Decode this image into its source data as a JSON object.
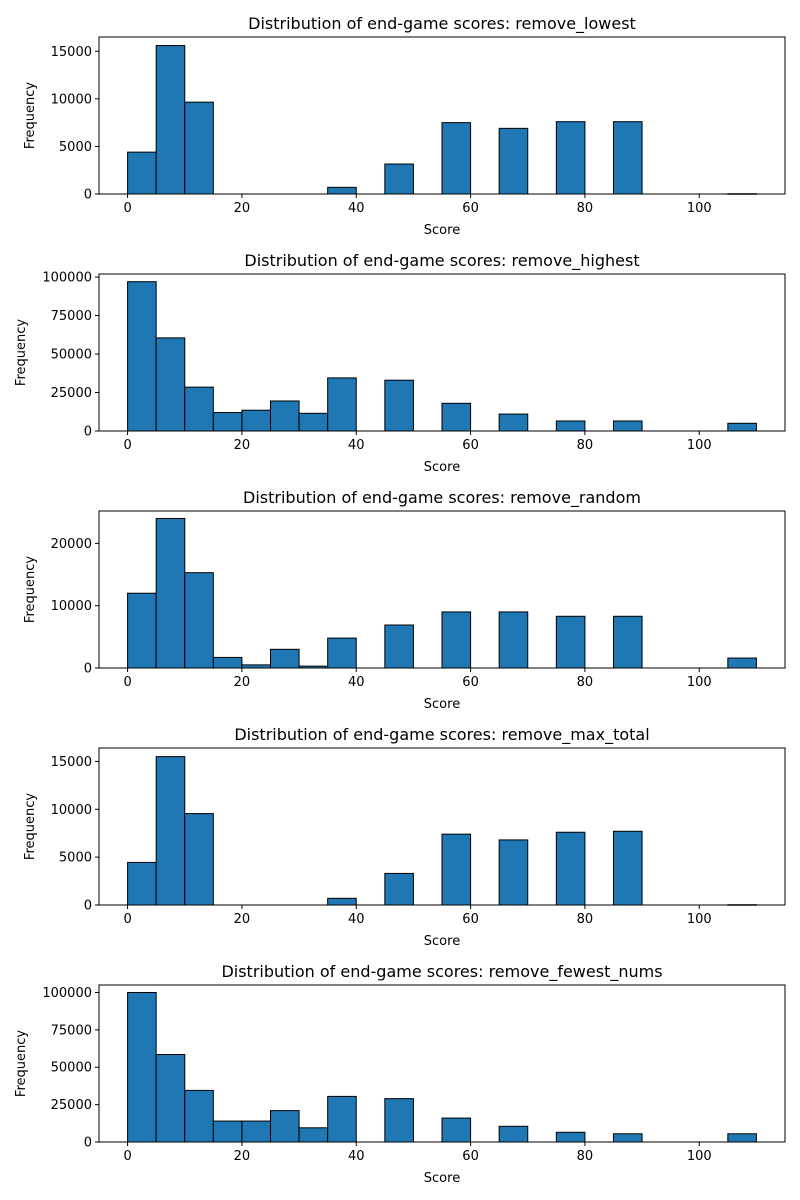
{
  "chart_data": [
    {
      "type": "bar",
      "title": "Distribution of end-game scores: remove_lowest",
      "xlabel": "Score",
      "ylabel": "Frequency",
      "xlim": [
        -5,
        115
      ],
      "ylim": [
        0,
        16500
      ],
      "xticks": [
        0,
        20,
        40,
        60,
        80,
        100
      ],
      "yticks": [
        0,
        5000,
        10000,
        15000
      ],
      "bin_edges": [
        0,
        5,
        10,
        15,
        20,
        25,
        30,
        35,
        40,
        45,
        50,
        55,
        60,
        65,
        70,
        75,
        80,
        85,
        90,
        95,
        100,
        105,
        110
      ],
      "values": [
        4400,
        15600,
        9650,
        0,
        0,
        0,
        0,
        700,
        0,
        3150,
        0,
        7500,
        0,
        6900,
        0,
        7600,
        0,
        7600,
        0,
        0,
        0,
        30
      ],
      "bar_color": "#1f77b4",
      "edge_color": "#000000"
    },
    {
      "type": "bar",
      "title": "Distribution of end-game scores: remove_highest",
      "xlabel": "Score",
      "ylabel": "Frequency",
      "xlim": [
        -5,
        115
      ],
      "ylim": [
        0,
        102000
      ],
      "xticks": [
        0,
        20,
        40,
        60,
        80,
        100
      ],
      "yticks": [
        0,
        25000,
        50000,
        75000,
        100000
      ],
      "bin_edges": [
        0,
        5,
        10,
        15,
        20,
        25,
        30,
        35,
        40,
        45,
        50,
        55,
        60,
        65,
        70,
        75,
        80,
        85,
        90,
        95,
        100,
        105,
        110
      ],
      "values": [
        97000,
        60500,
        28500,
        12000,
        13500,
        19500,
        11500,
        34500,
        0,
        33000,
        0,
        18000,
        0,
        11000,
        0,
        6500,
        0,
        6500,
        0,
        0,
        0,
        5000
      ],
      "bar_color": "#1f77b4",
      "edge_color": "#000000"
    },
    {
      "type": "bar",
      "title": "Distribution of end-game scores: remove_random",
      "xlabel": "Score",
      "ylabel": "Frequency",
      "xlim": [
        -5,
        115
      ],
      "ylim": [
        0,
        25200
      ],
      "xticks": [
        0,
        20,
        40,
        60,
        80,
        100
      ],
      "yticks": [
        0,
        10000,
        20000
      ],
      "bin_edges": [
        0,
        5,
        10,
        15,
        20,
        25,
        30,
        35,
        40,
        45,
        50,
        55,
        60,
        65,
        70,
        75,
        80,
        85,
        90,
        95,
        100,
        105,
        110
      ],
      "values": [
        12000,
        24000,
        15300,
        1700,
        500,
        3000,
        300,
        4800,
        0,
        6900,
        0,
        9000,
        0,
        9000,
        0,
        8300,
        0,
        8300,
        0,
        0,
        0,
        1600
      ],
      "bar_color": "#1f77b4",
      "edge_color": "#000000"
    },
    {
      "type": "bar",
      "title": "Distribution of end-game scores: remove_max_total",
      "xlabel": "Score",
      "ylabel": "Frequency",
      "xlim": [
        -5,
        115
      ],
      "ylim": [
        0,
        16400
      ],
      "xticks": [
        0,
        20,
        40,
        60,
        80,
        100
      ],
      "yticks": [
        0,
        5000,
        10000,
        15000
      ],
      "bin_edges": [
        0,
        5,
        10,
        15,
        20,
        25,
        30,
        35,
        40,
        45,
        50,
        55,
        60,
        65,
        70,
        75,
        80,
        85,
        90,
        95,
        100,
        105,
        110
      ],
      "values": [
        4450,
        15500,
        9550,
        0,
        0,
        0,
        0,
        700,
        0,
        3300,
        0,
        7400,
        0,
        6800,
        0,
        7600,
        0,
        7700,
        0,
        0,
        0,
        30
      ],
      "bar_color": "#1f77b4",
      "edge_color": "#000000"
    },
    {
      "type": "bar",
      "title": "Distribution of end-game scores: remove_fewest_nums",
      "xlabel": "Score",
      "ylabel": "Frequency",
      "xlim": [
        -5,
        115
      ],
      "ylim": [
        0,
        105000
      ],
      "xticks": [
        0,
        20,
        40,
        60,
        80,
        100
      ],
      "yticks": [
        0,
        25000,
        50000,
        75000,
        100000
      ],
      "bin_edges": [
        0,
        5,
        10,
        15,
        20,
        25,
        30,
        35,
        40,
        45,
        50,
        55,
        60,
        65,
        70,
        75,
        80,
        85,
        90,
        95,
        100,
        105,
        110
      ],
      "values": [
        100000,
        58500,
        34500,
        14000,
        14000,
        21000,
        9500,
        30500,
        0,
        29000,
        0,
        16000,
        0,
        10500,
        0,
        6500,
        0,
        5500,
        0,
        0,
        0,
        5500
      ],
      "bar_color": "#1f77b4",
      "edge_color": "#000000"
    }
  ]
}
